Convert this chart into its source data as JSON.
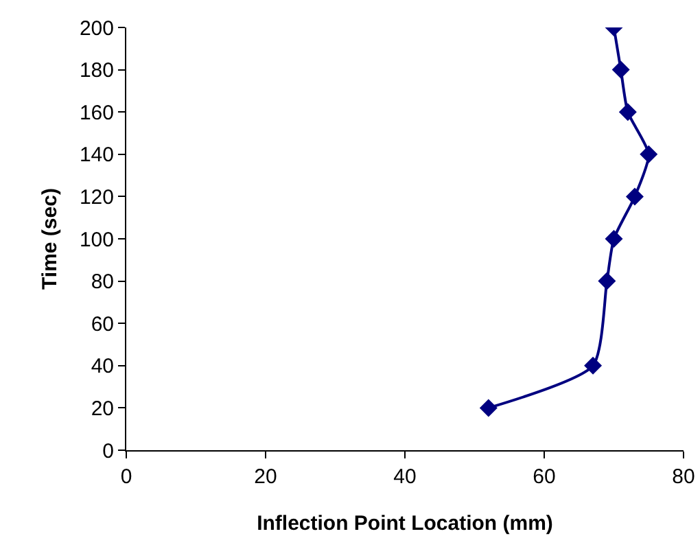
{
  "chart_data": {
    "type": "line",
    "xlabel": "Inflection Point Location (mm)",
    "ylabel": "Time (sec)",
    "x": [
      52,
      67,
      69,
      70,
      73,
      75,
      72,
      71,
      70
    ],
    "series": [
      {
        "color": "#000080",
        "values": [
          20,
          40,
          80,
          100,
          120,
          140,
          160,
          180,
          200
        ]
      }
    ],
    "xlim": [
      0,
      80
    ],
    "xticks": [
      0,
      20,
      40,
      60,
      80
    ],
    "ylim": [
      0,
      200
    ],
    "yticks": [
      0,
      20,
      40,
      60,
      80,
      100,
      120,
      140,
      160,
      180,
      200
    ],
    "marker": "diamond",
    "line_style": "solid",
    "grid": false,
    "legend": false
  }
}
